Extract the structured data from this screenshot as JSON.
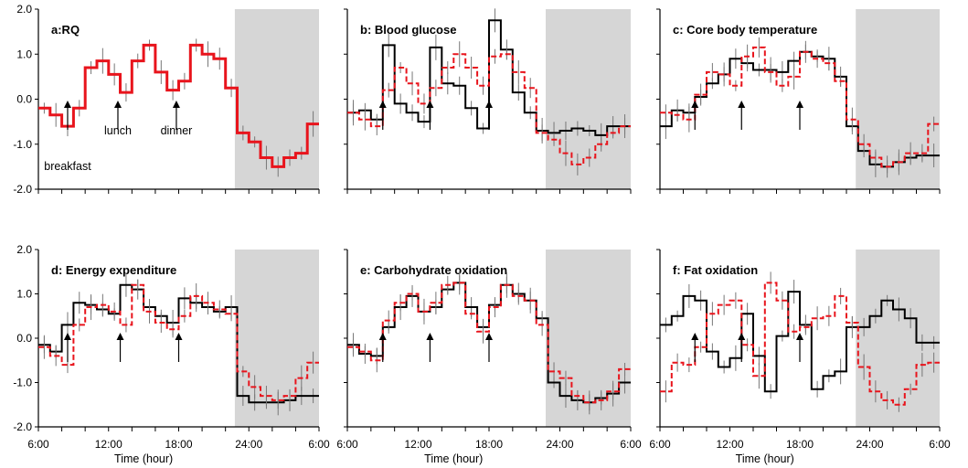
{
  "chart_data": [
    {
      "panel": "a",
      "type": "line",
      "title": "a:RQ",
      "x_ticks": [
        "6:00",
        "12:00",
        "18:00",
        "24:00",
        "6:00"
      ],
      "y_ticks": [
        "2.0",
        "1.0",
        "0.0",
        "-1.0",
        "-2.0"
      ],
      "ylim": [
        -2.0,
        2.0
      ],
      "xlim": [
        6,
        30
      ],
      "night_shade": [
        22.8,
        30
      ],
      "annotations": [
        {
          "text": "breakfast",
          "x": 8.5
        },
        {
          "text": "lunch",
          "x": 12.8
        },
        {
          "text": "dinner",
          "x": 17.8
        }
      ],
      "series": [
        {
          "color": "#e8141c",
          "style": "solid-thick",
          "x": [
            6,
            7,
            8,
            9,
            10,
            11,
            12,
            13,
            14,
            15,
            16,
            17,
            18,
            19,
            20,
            21,
            22,
            23,
            24,
            25,
            26,
            27,
            28,
            29,
            30
          ],
          "y": [
            -0.2,
            -0.35,
            -0.6,
            -0.2,
            0.7,
            0.85,
            0.55,
            0.15,
            0.85,
            1.2,
            0.6,
            0.2,
            0.4,
            1.2,
            1.0,
            0.9,
            0.25,
            -0.75,
            -0.95,
            -1.3,
            -1.5,
            -1.3,
            -1.2,
            -0.55,
            -0.55
          ]
        }
      ]
    },
    {
      "panel": "b",
      "type": "line",
      "title": "b: Blood glucose",
      "x_ticks": [
        "6:00",
        "12:00",
        "18:00",
        "24:00",
        "6:00"
      ],
      "ylim": [
        -2.0,
        2.0
      ],
      "xlim": [
        6,
        30
      ],
      "night_shade": [
        22.8,
        30
      ],
      "arrows_x": [
        9,
        13,
        18
      ],
      "series": [
        {
          "color": "#000000",
          "style": "solid",
          "x": [
            6,
            7,
            8,
            9,
            10,
            11,
            12,
            13,
            14,
            15,
            16,
            17,
            18,
            19,
            20,
            21,
            22,
            23,
            24,
            25,
            26,
            27,
            28,
            29,
            30
          ],
          "y": [
            -0.3,
            -0.25,
            -0.45,
            1.2,
            -0.1,
            -0.3,
            -0.5,
            1.15,
            0.35,
            0.3,
            -0.2,
            -0.65,
            1.75,
            1.1,
            0.15,
            -0.3,
            -0.7,
            -0.75,
            -0.7,
            -0.65,
            -0.7,
            -0.8,
            -0.6,
            -0.6,
            -0.6
          ]
        },
        {
          "color": "#e8141c",
          "style": "dashed",
          "x": [
            6,
            7,
            8,
            9,
            10,
            11,
            12,
            13,
            14,
            15,
            16,
            17,
            18,
            19,
            20,
            21,
            22,
            23,
            24,
            25,
            26,
            27,
            28,
            29,
            30
          ],
          "y": [
            -0.3,
            -0.45,
            -0.6,
            0.2,
            0.7,
            0.35,
            -0.1,
            0.25,
            0.7,
            1.0,
            0.7,
            0.3,
            0.95,
            1.0,
            0.6,
            0.25,
            -0.75,
            -0.9,
            -1.2,
            -1.45,
            -1.3,
            -1.0,
            -0.75,
            -0.6,
            -0.6
          ]
        }
      ]
    },
    {
      "panel": "c",
      "type": "line",
      "title": "c: Core body temperature",
      "x_ticks": [
        "6:00",
        "12:00",
        "18:00",
        "24:00",
        "6:00"
      ],
      "ylim": [
        -2.0,
        2.0
      ],
      "xlim": [
        6,
        30
      ],
      "night_shade": [
        22.8,
        30
      ],
      "arrows_x": [
        9,
        13,
        18
      ],
      "series": [
        {
          "color": "#000000",
          "style": "solid",
          "x": [
            6,
            7,
            8,
            9,
            10,
            11,
            12,
            13,
            14,
            15,
            16,
            17,
            18,
            19,
            20,
            21,
            22,
            23,
            24,
            25,
            26,
            27,
            28,
            29,
            30
          ],
          "y": [
            -0.6,
            -0.25,
            -0.3,
            0.05,
            0.35,
            0.55,
            0.9,
            0.8,
            0.65,
            0.65,
            0.6,
            0.85,
            1.05,
            0.95,
            0.9,
            0.5,
            -0.6,
            -1.15,
            -1.45,
            -1.5,
            -1.4,
            -1.3,
            -1.25,
            -1.25,
            -1.25
          ]
        },
        {
          "color": "#e8141c",
          "style": "dashed",
          "x": [
            6,
            7,
            8,
            9,
            10,
            11,
            12,
            13,
            14,
            15,
            16,
            17,
            18,
            19,
            20,
            21,
            22,
            23,
            24,
            25,
            26,
            27,
            28,
            29,
            30
          ],
          "y": [
            -0.3,
            -0.35,
            -0.45,
            0.1,
            0.6,
            0.55,
            0.3,
            0.95,
            1.15,
            0.6,
            0.3,
            0.5,
            1.05,
            0.9,
            0.8,
            0.4,
            -0.45,
            -1.0,
            -1.3,
            -1.5,
            -1.4,
            -1.2,
            -1.2,
            -0.55,
            -0.55
          ]
        }
      ]
    },
    {
      "panel": "d",
      "type": "line",
      "title": "d: Energy expenditure",
      "x_ticks": [
        "6:00",
        "12:00",
        "18:00",
        "24:00",
        "6:00"
      ],
      "y_ticks": [
        "2.0",
        "1.0",
        "0.0",
        "-1.0",
        "-2.0"
      ],
      "ylim": [
        -2.0,
        2.0
      ],
      "xlim": [
        6,
        30
      ],
      "night_shade": [
        22.8,
        30
      ],
      "arrows_x": [
        8.5,
        13,
        18
      ],
      "xlabel": "Time (hour)",
      "series": [
        {
          "color": "#000000",
          "style": "solid",
          "x": [
            6,
            7,
            8,
            9,
            10,
            11,
            12,
            13,
            14,
            15,
            16,
            17,
            18,
            19,
            20,
            21,
            22,
            23,
            24,
            25,
            26,
            27,
            28,
            29,
            30
          ],
          "y": [
            -0.15,
            -0.3,
            0.3,
            0.8,
            0.75,
            0.65,
            0.55,
            1.2,
            1.1,
            0.7,
            0.5,
            0.35,
            0.9,
            0.8,
            0.7,
            0.6,
            0.7,
            -1.3,
            -1.45,
            -1.45,
            -1.45,
            -1.4,
            -1.3,
            -1.3,
            -1.3
          ]
        },
        {
          "color": "#e8141c",
          "style": "dashed",
          "x": [
            6,
            7,
            8,
            9,
            10,
            11,
            12,
            13,
            14,
            15,
            16,
            17,
            18,
            19,
            20,
            21,
            22,
            23,
            24,
            25,
            26,
            27,
            28,
            29,
            30
          ],
          "y": [
            -0.2,
            -0.4,
            -0.6,
            0.3,
            0.7,
            0.75,
            0.6,
            0.3,
            1.2,
            0.6,
            0.35,
            0.2,
            0.5,
            0.95,
            0.8,
            0.65,
            0.55,
            -0.75,
            -1.1,
            -1.3,
            -1.4,
            -1.3,
            -0.9,
            -0.55,
            -0.55
          ]
        }
      ]
    },
    {
      "panel": "e",
      "type": "line",
      "title": "e: Carbohydrate oxidation",
      "x_ticks": [
        "6:00",
        "12:00",
        "18:00",
        "24:00",
        "6:00"
      ],
      "ylim": [
        -2.0,
        2.0
      ],
      "xlim": [
        6,
        30
      ],
      "night_shade": [
        22.8,
        30
      ],
      "arrows_x": [
        9,
        13,
        18
      ],
      "xlabel": "Time (hour)",
      "series": [
        {
          "color": "#000000",
          "style": "solid",
          "x": [
            6,
            7,
            8,
            9,
            10,
            11,
            12,
            13,
            14,
            15,
            16,
            17,
            18,
            19,
            20,
            21,
            22,
            23,
            24,
            25,
            26,
            27,
            28,
            29,
            30
          ],
          "y": [
            -0.15,
            -0.35,
            -0.4,
            0.25,
            0.7,
            0.95,
            0.6,
            0.7,
            1.1,
            1.25,
            0.7,
            0.25,
            0.75,
            1.2,
            1.0,
            0.85,
            0.45,
            -1.0,
            -1.3,
            -1.4,
            -1.45,
            -1.35,
            -1.25,
            -1.0,
            -1.0
          ]
        },
        {
          "color": "#e8141c",
          "style": "dashed",
          "x": [
            6,
            7,
            8,
            9,
            10,
            11,
            12,
            13,
            14,
            15,
            16,
            17,
            18,
            19,
            20,
            21,
            22,
            23,
            24,
            25,
            26,
            27,
            28,
            29,
            30
          ],
          "y": [
            -0.2,
            -0.3,
            -0.5,
            0.4,
            0.8,
            1.0,
            0.6,
            0.8,
            1.2,
            1.25,
            0.55,
            0.15,
            0.7,
            1.2,
            0.95,
            0.85,
            0.3,
            -0.75,
            -0.9,
            -1.3,
            -1.45,
            -1.4,
            -1.2,
            -0.7,
            -0.7
          ]
        }
      ]
    },
    {
      "panel": "f",
      "type": "line",
      "title": "f: Fat oxidation",
      "x_ticks": [
        "6:00",
        "12:00",
        "18:00",
        "24:00",
        "6:00"
      ],
      "ylim": [
        -2.0,
        2.0
      ],
      "xlim": [
        6,
        30
      ],
      "night_shade": [
        22.8,
        30
      ],
      "arrows_x": [
        9,
        13,
        18
      ],
      "xlabel": "Time (hour)",
      "series": [
        {
          "color": "#000000",
          "style": "solid",
          "x": [
            6,
            7,
            8,
            9,
            10,
            11,
            12,
            13,
            14,
            15,
            16,
            17,
            18,
            19,
            20,
            21,
            22,
            23,
            24,
            25,
            26,
            27,
            28,
            29,
            30
          ],
          "y": [
            0.3,
            0.5,
            0.95,
            0.85,
            -0.3,
            -0.65,
            -0.45,
            0.55,
            -0.4,
            -1.2,
            0.05,
            1.05,
            0.3,
            -1.15,
            -0.85,
            -0.75,
            0.25,
            0.25,
            0.5,
            0.85,
            0.65,
            0.45,
            -0.1,
            -0.1,
            -0.1
          ]
        },
        {
          "color": "#e8141c",
          "style": "dashed",
          "x": [
            6,
            7,
            8,
            9,
            10,
            11,
            12,
            13,
            14,
            15,
            16,
            17,
            18,
            19,
            20,
            21,
            22,
            23,
            24,
            25,
            26,
            27,
            28,
            29,
            30
          ],
          "y": [
            -1.2,
            -0.55,
            -0.6,
            -0.2,
            0.55,
            0.75,
            0.85,
            -0.15,
            -0.85,
            1.25,
            0.85,
            0.15,
            0.25,
            0.45,
            0.5,
            0.95,
            0.35,
            -0.65,
            -1.2,
            -1.4,
            -1.5,
            -1.15,
            -0.6,
            -0.55,
            -0.55
          ]
        }
      ]
    }
  ]
}
